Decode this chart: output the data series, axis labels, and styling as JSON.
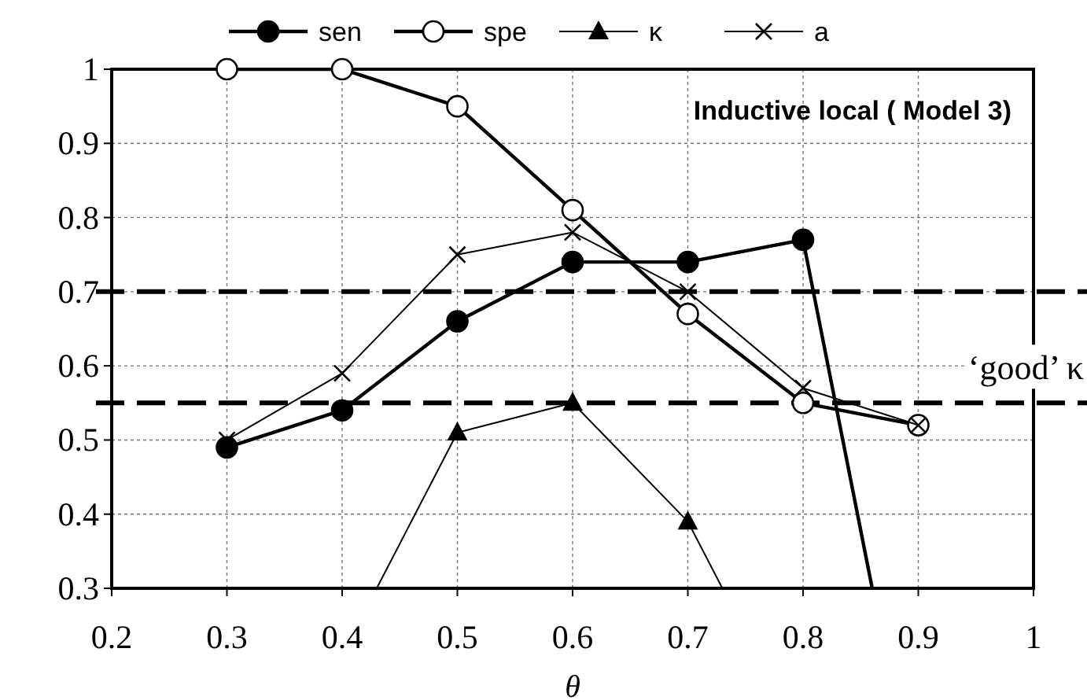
{
  "chart_data": {
    "type": "line",
    "title": "Inductive local ( Model 3)",
    "xlabel": "θ",
    "x": [
      0.3,
      0.4,
      0.5,
      0.6,
      0.7,
      0.8,
      0.9
    ],
    "series": [
      {
        "name": "sen",
        "color": "#000000",
        "marker": "circle",
        "x": [
          0.3,
          0.4,
          0.5,
          0.6,
          0.7,
          0.8,
          0.86
        ],
        "values": [
          0.49,
          0.54,
          0.66,
          0.74,
          0.74,
          0.77,
          0.3
        ]
      },
      {
        "name": "spe",
        "color": "#000000",
        "marker": "circle",
        "values": [
          1,
          1,
          0.95,
          0.81,
          0.67,
          0.55,
          0.52
        ]
      },
      {
        "name": "κ",
        "color": "#000000",
        "marker": "triangle",
        "x": [
          0.43,
          0.5,
          0.6,
          0.7,
          0.73
        ],
        "values": [
          0.3,
          0.51,
          0.55,
          0.39,
          0.3
        ]
      },
      {
        "name": "a",
        "color": "#000000",
        "marker": "cross",
        "values": [
          0.5,
          0.59,
          0.75,
          0.78,
          0.7,
          0.57,
          0.52
        ]
      }
    ],
    "xlim": [
      0.2,
      1
    ],
    "xticks": [
      0.2,
      0.3,
      0.4,
      0.5,
      0.6,
      0.7,
      0.8,
      0.9,
      1
    ],
    "ylim": [
      0.3,
      1
    ],
    "yticks": [
      0.3,
      0.4,
      0.5,
      0.6,
      0.7,
      0.8,
      0.9,
      1
    ],
    "ref_lines": [
      {
        "axis": "y",
        "value": 0.7,
        "line_style": "dashed"
      },
      {
        "axis": "y",
        "value": 0.55,
        "label": "‘good’ κ",
        "line_style": "dashed"
      }
    ],
    "grid": true,
    "legend": "top",
    "line_style": "solid"
  }
}
